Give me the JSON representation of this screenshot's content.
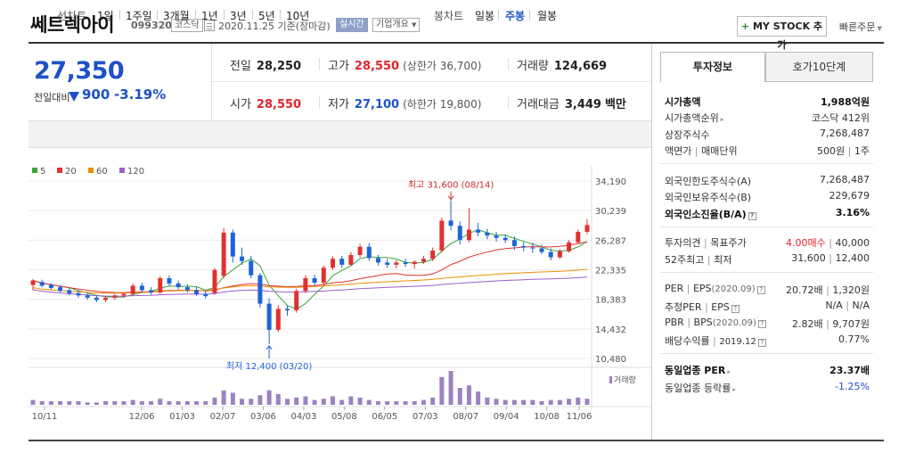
{
  "header": {
    "company_name": "쎄트렉아이",
    "company_code": "099320",
    "market": "코스닥",
    "base_date": "2020.11.25 기준(장마감)",
    "realtime": "실시간",
    "company_info": "기업개요",
    "mystock_label": "MY STOCK 추가",
    "quick_order": "빠른주문"
  },
  "price": {
    "current": "27,350",
    "change_label": "전일대비",
    "change_amount": "900",
    "change_rate": "-3.19%"
  },
  "stats": {
    "prev_close_label": "전일",
    "prev_close": "28,250",
    "high_label": "고가",
    "high": "28,550",
    "upper_limit": "(상한가 36,700)",
    "volume_label": "거래량",
    "volume": "124,669",
    "open_label": "시가",
    "open": "28,550",
    "low_label": "저가",
    "low": "27,100",
    "lower_limit": "(하한가 19,800)",
    "amount_label": "거래대금",
    "amount": "3,449",
    "amount_unit": "백만"
  },
  "period_nav": {
    "label": "선차트",
    "items": [
      "1일",
      "1주일",
      "3개월",
      "1년",
      "3년",
      "5년",
      "10년"
    ],
    "candle_label": "봉차트",
    "candle_items": [
      "일봉",
      "주봉",
      "월봉"
    ],
    "active_candle": "주봉"
  },
  "chart_data": {
    "type": "candlestick",
    "legend": [
      "5",
      "20",
      "60",
      "120"
    ],
    "legend_colors": [
      "#3aa33a",
      "#e03131",
      "#f08c00",
      "#9c5fc7"
    ],
    "y_ticks": [
      "34,190",
      "30,239",
      "26,287",
      "22,335",
      "18,383",
      "14,432",
      "10,480"
    ],
    "ylim": [
      10480,
      34190
    ],
    "x_ticks": [
      "10/11",
      "12/06",
      "01/03",
      "02/07",
      "03/06",
      "04/03",
      "05/08",
      "06/05",
      "07/03",
      "08/07",
      "09/04",
      "10/08",
      "11/06"
    ],
    "high_annotation": "최고 31,600 (08/14)",
    "low_annotation": "최저 12,400 (03/20)",
    "volume_label": "거래량",
    "candles": [
      [
        20300,
        21100,
        19600,
        20900
      ],
      [
        20700,
        21000,
        20000,
        20200
      ],
      [
        20300,
        20500,
        19700,
        19900
      ],
      [
        20000,
        20300,
        19300,
        19500
      ],
      [
        19600,
        19900,
        18900,
        19200
      ],
      [
        19200,
        19600,
        18600,
        18900
      ],
      [
        18900,
        19200,
        18300,
        18600
      ],
      [
        18600,
        18900,
        18000,
        18300
      ],
      [
        18300,
        18800,
        18000,
        18600
      ],
      [
        18600,
        19100,
        18300,
        18900
      ],
      [
        18900,
        19300,
        18600,
        19100
      ],
      [
        19100,
        20500,
        18900,
        20200
      ],
      [
        20200,
        20600,
        19300,
        19600
      ],
      [
        19600,
        20000,
        19000,
        19300
      ],
      [
        19300,
        21500,
        19100,
        21200
      ],
      [
        21200,
        21600,
        20200,
        20500
      ],
      [
        20500,
        20900,
        19700,
        20000
      ],
      [
        20000,
        20400,
        19300,
        19600
      ],
      [
        19600,
        20100,
        18800,
        19100
      ],
      [
        19100,
        19600,
        18500,
        18800
      ],
      [
        19200,
        22600,
        19000,
        22300
      ],
      [
        21500,
        27900,
        21200,
        27300
      ],
      [
        27300,
        27700,
        23300,
        24100
      ],
      [
        24100,
        25300,
        23000,
        23500
      ],
      [
        23500,
        24200,
        21200,
        21600
      ],
      [
        21600,
        21900,
        17300,
        17800
      ],
      [
        17800,
        18500,
        12400,
        14300
      ],
      [
        14300,
        17600,
        14000,
        17100
      ],
      [
        17100,
        17600,
        16200,
        16900
      ],
      [
        16900,
        19800,
        16600,
        19500
      ],
      [
        19500,
        21600,
        19200,
        21200
      ],
      [
        21200,
        21700,
        20200,
        20600
      ],
      [
        20600,
        22900,
        20300,
        22600
      ],
      [
        22600,
        24100,
        22300,
        23800
      ],
      [
        23800,
        24200,
        22600,
        23000
      ],
      [
        23000,
        24700,
        22800,
        24300
      ],
      [
        24300,
        25800,
        24000,
        25400
      ],
      [
        25400,
        25900,
        23500,
        23900
      ],
      [
        23900,
        24300,
        22900,
        23300
      ],
      [
        23300,
        23800,
        22600,
        23000
      ],
      [
        23000,
        23600,
        22500,
        23300
      ],
      [
        23300,
        23800,
        22700,
        23100
      ],
      [
        23100,
        23600,
        22500,
        23400
      ],
      [
        23400,
        24200,
        23100,
        23800
      ],
      [
        23800,
        25300,
        23500,
        24900
      ],
      [
        24900,
        29300,
        24600,
        28900
      ],
      [
        28900,
        31600,
        27600,
        28200
      ],
      [
        28200,
        28800,
        25700,
        26300
      ],
      [
        26300,
        30600,
        26000,
        27700
      ],
      [
        27700,
        28600,
        26800,
        27300
      ],
      [
        27300,
        27800,
        26400,
        26900
      ],
      [
        26900,
        27400,
        26100,
        26600
      ],
      [
        26600,
        27100,
        25900,
        26300
      ],
      [
        26300,
        26800,
        25000,
        25500
      ],
      [
        25500,
        26000,
        24800,
        25300
      ],
      [
        25300,
        25900,
        24600,
        25200
      ],
      [
        25200,
        25700,
        24400,
        24700
      ],
      [
        24700,
        25200,
        23600,
        24000
      ],
      [
        24000,
        25100,
        23800,
        24800
      ],
      [
        24800,
        26300,
        24600,
        26000
      ],
      [
        26000,
        27700,
        25800,
        27400
      ],
      [
        27400,
        29100,
        27100,
        28300
      ]
    ],
    "volumes": [
      4,
      3,
      3,
      3,
      3,
      3,
      2,
      2,
      3,
      3,
      3,
      4,
      3,
      3,
      5,
      3,
      3,
      3,
      3,
      3,
      6,
      12,
      10,
      5,
      5,
      8,
      12,
      9,
      5,
      6,
      7,
      4,
      5,
      7,
      4,
      7,
      6,
      4,
      3,
      3,
      3,
      3,
      3,
      4,
      6,
      23,
      28,
      14,
      16,
      11,
      6,
      5,
      4,
      4,
      4,
      4,
      3,
      4,
      4,
      5,
      6,
      5
    ]
  },
  "tabs": {
    "invest": "투자정보",
    "hoga": "호가10단계"
  },
  "invest": {
    "market_cap_label": "시가총액",
    "market_cap": "1,988억원",
    "market_cap_rank_label": "시가총액순위",
    "market_cap_rank": "코스닥 412위",
    "listed_shares_label": "상장주식수",
    "listed_shares": "7,268,487",
    "par_label": "액면가",
    "unit_label": "매매단위",
    "par": "500원",
    "unit": "1주",
    "foreign_limit_label": "외국인한도주식수(A)",
    "foreign_limit": "7,268,487",
    "foreign_hold_label": "외국인보유주식수(B)",
    "foreign_hold": "229,679",
    "foreign_rate_label": "외국인소진율(B/A)",
    "foreign_rate": "3.16%",
    "opinion_label": "투자의견",
    "target_label": "목표주가",
    "opinion": "4.00매수",
    "target": "40,000",
    "week52_high_label": "52주최고",
    "week52_low_label": "최저",
    "week52_high": "31,600",
    "week52_low": "12,400",
    "per_label": "PER",
    "eps_label": "EPS",
    "per_year": "(2020.09)",
    "per": "20.72배",
    "eps": "1,320원",
    "est_per_label": "추정PER",
    "est_eps_label": "EPS",
    "est_per": "N/A",
    "est_eps": "N/A",
    "pbr_label": "PBR",
    "bps_label": "BPS",
    "pbr_year": "(2020.09)",
    "pbr": "2.82배",
    "bps": "9,707원",
    "dividend_label": "배당수익률",
    "dividend_year": "2019.12",
    "dividend": "0.77%",
    "sector_per_label": "동일업종 PER",
    "sector_per": "23.37배",
    "sector_rate_label": "동일업종 등락률",
    "sector_rate": "-1.25%"
  }
}
